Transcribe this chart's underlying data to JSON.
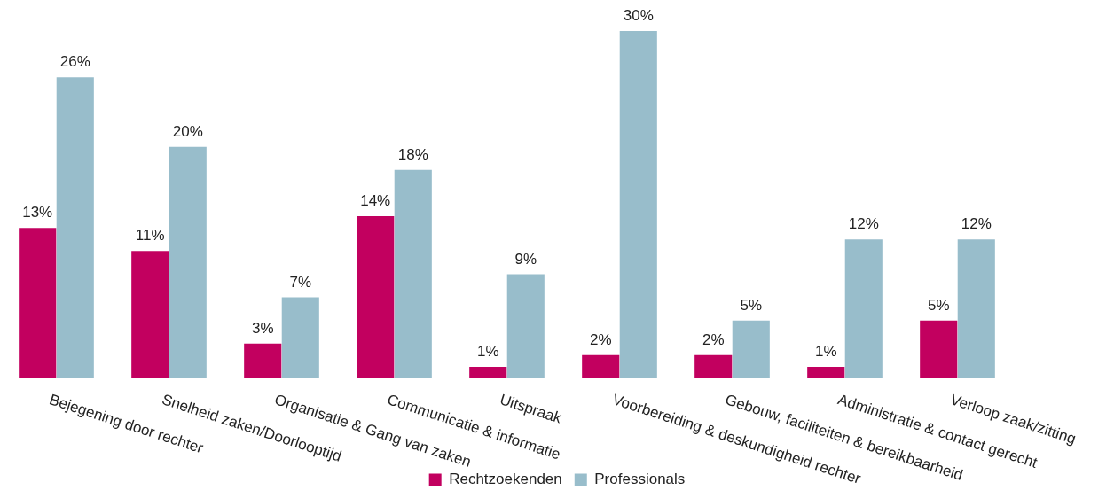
{
  "chart_data": {
    "type": "bar",
    "categories": [
      "Bejegening door rechter",
      "Snelheid zaken/Doorlooptijd",
      "Organisatie & Gang van zaken",
      "Communicatie & informatie",
      "Uitspraak",
      "Voorbereiding & deskundigheid rechter",
      "Gebouw, faciliteiten & bereikbaarheid",
      "Administratie & contact gerecht",
      "Verloop zaak/zitting"
    ],
    "series": [
      {
        "name": "Rechtzoekenden",
        "color": "#c2005f",
        "values": [
          13,
          11,
          3,
          14,
          1,
          2,
          2,
          1,
          5
        ],
        "value_labels": [
          "13%",
          "11%",
          "3%",
          "14%",
          "1%",
          "2%",
          "2%",
          "1%",
          "5%"
        ]
      },
      {
        "name": "Professionals",
        "color": "#98bdcb",
        "values": [
          26,
          20,
          7,
          18,
          9,
          30,
          5,
          12,
          12
        ],
        "value_labels": [
          "26%",
          "20%",
          "7%",
          "18%",
          "9%",
          "30%",
          "5%",
          "12%",
          "12%"
        ]
      }
    ],
    "ylim": [
      0,
      30
    ],
    "tick_labels": "x",
    "legend": "bottom"
  }
}
